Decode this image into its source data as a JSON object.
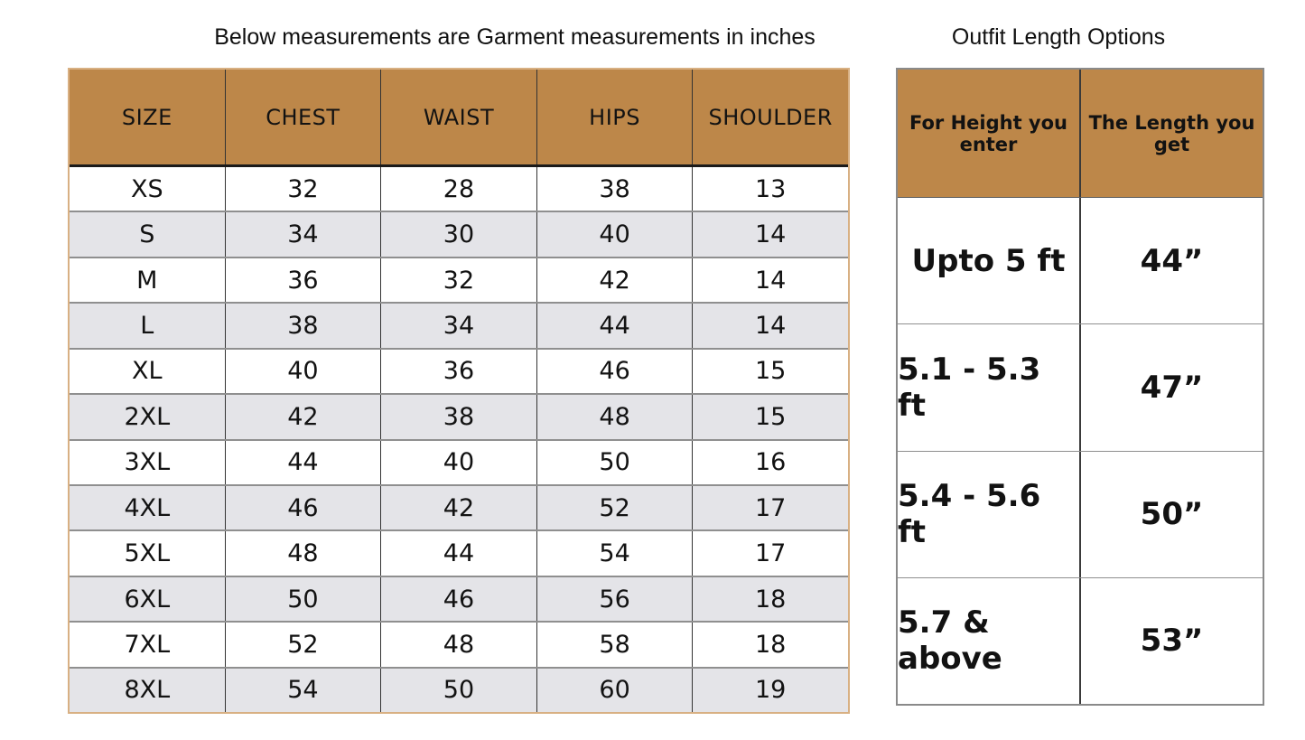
{
  "chart_data": [
    {
      "type": "table",
      "title": "Below measurements are Garment measurements in inches",
      "columns": [
        "SIZE",
        "CHEST",
        "WAIST",
        "HIPS",
        "SHOULDER"
      ],
      "rows": [
        [
          "XS",
          "32",
          "28",
          "38",
          "13"
        ],
        [
          "S",
          "34",
          "30",
          "40",
          "14"
        ],
        [
          "M",
          "36",
          "32",
          "42",
          "14"
        ],
        [
          "L",
          "38",
          "34",
          "44",
          "14"
        ],
        [
          "XL",
          "40",
          "36",
          "46",
          "15"
        ],
        [
          "2XL",
          "42",
          "38",
          "48",
          "15"
        ],
        [
          "3XL",
          "44",
          "40",
          "50",
          "16"
        ],
        [
          "4XL",
          "46",
          "42",
          "52",
          "17"
        ],
        [
          "5XL",
          "48",
          "44",
          "54",
          "17"
        ],
        [
          "6XL",
          "50",
          "46",
          "56",
          "18"
        ],
        [
          "7XL",
          "52",
          "48",
          "58",
          "18"
        ],
        [
          "8XL",
          "54",
          "50",
          "60",
          "19"
        ]
      ],
      "layout_hints": {
        "units": "inches",
        "alternating_row_shading": true
      }
    },
    {
      "type": "table",
      "title": "Outfit Length Options",
      "columns": [
        "For Height you enter",
        "The Length you get"
      ],
      "rows": [
        [
          "Upto 5 ft",
          "44”"
        ],
        [
          "5.1 - 5.3 ft",
          "47”"
        ],
        [
          "5.4 - 5.6 ft",
          "50”"
        ],
        [
          "5.7 & above",
          "53”"
        ]
      ],
      "layout_hints": {
        "alternating_row_shading": false
      }
    }
  ],
  "colors": {
    "header_fill": "#bd8749",
    "alt_row_fill": "#e4e4e8",
    "left_table_outer_border": "#d8b083",
    "header_underline": "#1a1a1a",
    "column_divider": "#333333",
    "row_divider": "#8f8f8f",
    "right_table_outer_border": "#8a8a8a",
    "text": "#121212",
    "background": "#ffffff"
  }
}
